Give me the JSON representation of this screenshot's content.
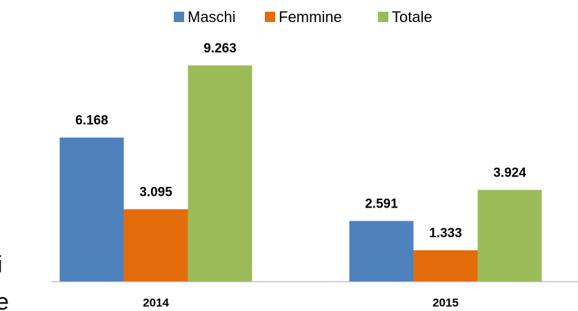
{
  "chart_data": {
    "type": "bar",
    "categories": [
      "2014",
      "2015"
    ],
    "series": [
      {
        "name": "Maschi",
        "color": "#4f81bd",
        "values": [
          6168,
          2591
        ],
        "value_labels": [
          "6.168",
          "2.591"
        ]
      },
      {
        "name": "Femmine",
        "color": "#e46c0a",
        "values": [
          3095,
          1333
        ],
        "value_labels": [
          "3.095",
          "1.333"
        ]
      },
      {
        "name": "Totale",
        "color": "#9bbb59",
        "values": [
          9263,
          3924
        ],
        "value_labels": [
          "9.263",
          "3.924"
        ]
      }
    ],
    "ylim": [
      0,
      10000
    ],
    "legend": "top",
    "background_text": [
      "i",
      "e"
    ]
  }
}
